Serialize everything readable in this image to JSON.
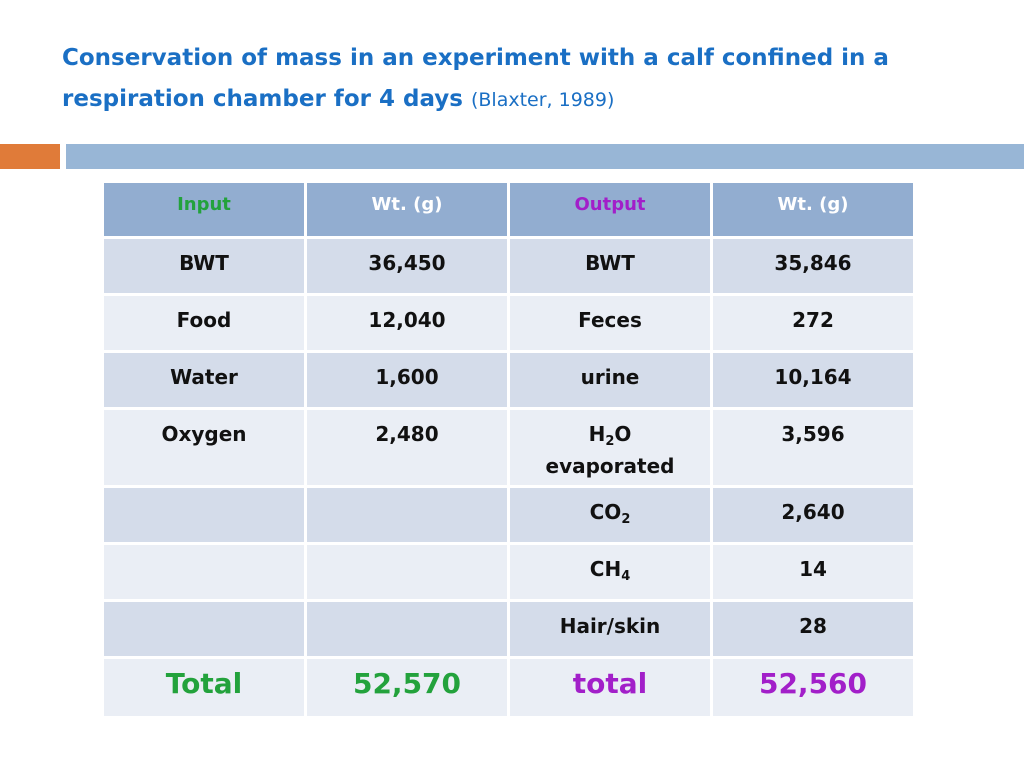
{
  "title": {
    "main": "Conservation of mass in an experiment with a calf confined in a respiration chamber for 4 days",
    "citation": "(Blaxter, 1989)"
  },
  "table": {
    "headers": {
      "input": "Input",
      "input_wt": "Wt. (g)",
      "output": "Output",
      "output_wt": "Wt. (g)"
    },
    "rows": [
      {
        "input": "BWT",
        "input_wt": "36,450",
        "output": "BWT",
        "output_wt": "35,846"
      },
      {
        "input": "Food",
        "input_wt": "12,040",
        "output": "Feces",
        "output_wt": "272"
      },
      {
        "input": "Water",
        "input_wt": "1,600",
        "output": "urine",
        "output_wt": "10,164"
      },
      {
        "input": "Oxygen",
        "input_wt": "2,480",
        "output_base": "H",
        "output_sub": "2",
        "output_rest": "O",
        "output_line2": "evaporated",
        "output_wt": "3,596"
      },
      {
        "input": "",
        "input_wt": "",
        "output_base": "CO",
        "output_sub": "2",
        "output_wt": "2,640"
      },
      {
        "input": "",
        "input_wt": "",
        "output_base": "CH",
        "output_sub": "4",
        "output_wt": "14"
      },
      {
        "input": "",
        "input_wt": "",
        "output": "Hair/skin",
        "output_wt": "28"
      }
    ],
    "totals": {
      "input_label": "Total",
      "input_value": "52,570",
      "output_label": "total",
      "output_value": "52,560"
    }
  },
  "colors": {
    "title": "#1a6fc4",
    "header_bg": "#92add0",
    "row_dark": "#d4dcea",
    "row_light": "#eaeef5",
    "input_accent": "#23a23c",
    "output_accent": "#a21fc9",
    "bar_orange": "#e07b39",
    "bar_blue": "#98b6d6"
  }
}
